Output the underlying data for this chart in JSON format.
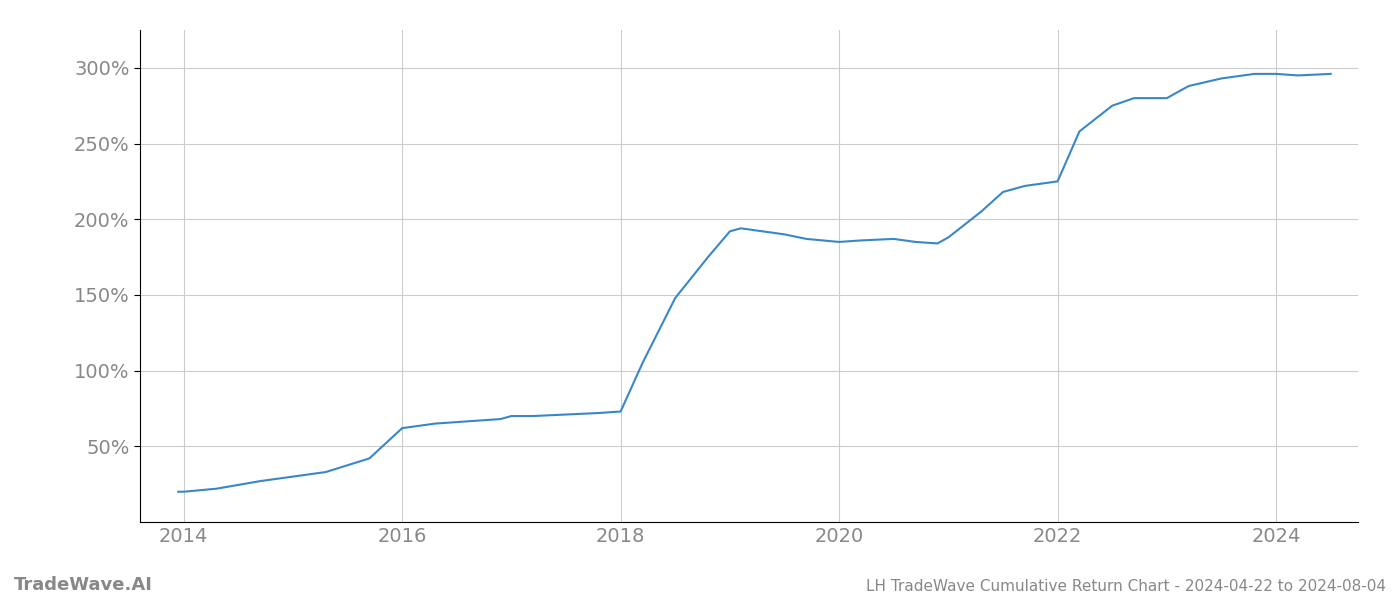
{
  "title": "LH TradeWave Cumulative Return Chart - 2024-04-22 to 2024-08-04",
  "watermark": "TradeWave.AI",
  "line_color": "#3a87c8",
  "line_width": 1.5,
  "background_color": "#ffffff",
  "grid_color": "#cccccc",
  "grid_linewidth": 0.8,
  "text_color": "#888888",
  "spine_color": "#aaaaaa",
  "x_years": [
    2013.95,
    2014.0,
    2014.3,
    2014.7,
    2015.0,
    2015.3,
    2015.7,
    2016.0,
    2016.3,
    2016.5,
    2016.7,
    2016.9,
    2017.0,
    2017.2,
    2017.5,
    2017.8,
    2018.0,
    2018.2,
    2018.5,
    2018.8,
    2019.0,
    2019.1,
    2019.3,
    2019.5,
    2019.7,
    2020.0,
    2020.2,
    2020.5,
    2020.7,
    2020.9,
    2021.0,
    2021.3,
    2021.5,
    2021.7,
    2022.0,
    2022.2,
    2022.5,
    2022.7,
    2023.0,
    2023.2,
    2023.5,
    2023.8,
    2024.0,
    2024.2,
    2024.5
  ],
  "y_values": [
    20,
    20,
    22,
    27,
    30,
    33,
    42,
    62,
    65,
    66,
    67,
    68,
    70,
    70,
    71,
    72,
    73,
    105,
    148,
    175,
    192,
    194,
    192,
    190,
    187,
    185,
    186,
    187,
    185,
    184,
    188,
    205,
    218,
    222,
    225,
    258,
    275,
    280,
    280,
    288,
    293,
    296,
    296,
    295,
    296
  ],
  "xlim": [
    2013.6,
    2024.75
  ],
  "ylim": [
    0,
    325
  ],
  "yticks": [
    50,
    100,
    150,
    200,
    250,
    300
  ],
  "ytick_labels": [
    "50%",
    "100%",
    "150%",
    "200%",
    "250%",
    "300%"
  ],
  "xtick_years": [
    2014,
    2016,
    2018,
    2020,
    2022,
    2024
  ],
  "title_fontsize": 11,
  "tick_fontsize": 14,
  "watermark_fontsize": 13
}
